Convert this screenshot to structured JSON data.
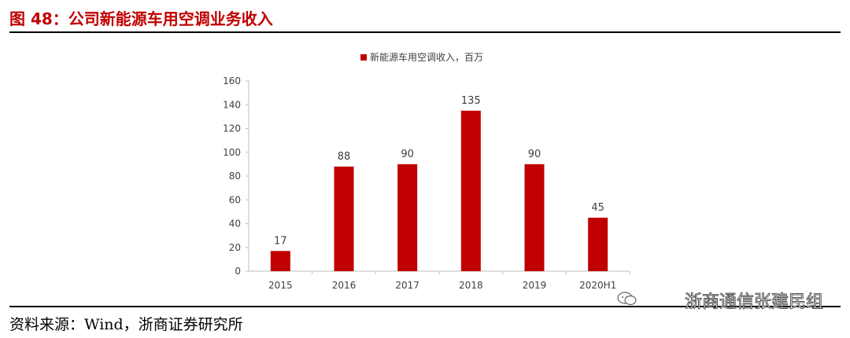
{
  "figure": {
    "title": "图 48：公司新能源车用空调业务收入",
    "source": "资料来源：Wind，浙商证券研究所",
    "watermark": "浙商通信张建民组",
    "watermark_icon": "wechat-icon"
  },
  "colors": {
    "bar": "#c00000",
    "title": "#c00000",
    "axis": "#bfbfbf",
    "text": "#404040"
  },
  "chart_data": {
    "type": "bar",
    "categories": [
      "2015",
      "2016",
      "2017",
      "2018",
      "2019",
      "2020H1"
    ],
    "series": [
      {
        "name": "新能源车用空调收入，百万",
        "values": [
          17,
          88,
          90,
          135,
          90,
          45
        ]
      }
    ],
    "data_labels": [
      "17",
      "88",
      "90",
      "135",
      "90",
      "45"
    ],
    "ylim": [
      0,
      160
    ],
    "yticks": [
      0,
      20,
      40,
      60,
      80,
      100,
      120,
      140,
      160
    ],
    "grid": false,
    "legend_position": "top-center"
  }
}
